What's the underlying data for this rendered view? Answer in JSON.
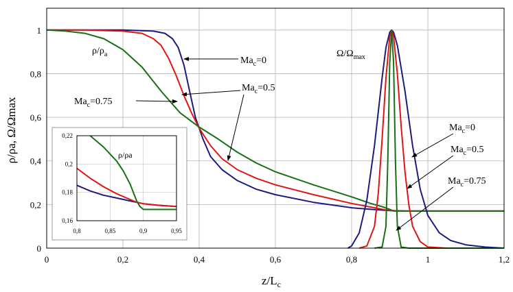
{
  "chart_data": {
    "type": "line",
    "xlabel": "z/L",
    "xlabel_sub": "c",
    "ylabel": "ρ/ρa, Ω/Ωmax",
    "xlim": [
      0,
      1.2
    ],
    "ylim": [
      0,
      1.1
    ],
    "x_ticks": [
      0,
      0.2,
      0.4,
      0.6,
      0.8,
      1.0,
      1.2
    ],
    "x_tick_labels": [
      "0",
      "0,2",
      "0,4",
      "0,6",
      "0,8",
      "1",
      "1,2"
    ],
    "y_ticks": [
      0,
      0.2,
      0.4,
      0.6,
      0.8,
      1.0
    ],
    "y_tick_labels": [
      "0",
      "0,2",
      "0,4",
      "0,6",
      "0,8",
      "1"
    ],
    "grid": true,
    "series": [
      {
        "name": "Mac=0 (ρ/ρa)",
        "color": "#1a1a80",
        "x": [
          0,
          0.1,
          0.2,
          0.28,
          0.31,
          0.33,
          0.345,
          0.36,
          0.375,
          0.39,
          0.41,
          0.43,
          0.46,
          0.5,
          0.55,
          0.6,
          0.7,
          0.8,
          0.85,
          0.9,
          0.95,
          1.0,
          1.2
        ],
        "y": [
          1.0,
          1.0,
          1.0,
          0.995,
          0.985,
          0.96,
          0.92,
          0.84,
          0.72,
          0.6,
          0.5,
          0.42,
          0.36,
          0.31,
          0.27,
          0.245,
          0.21,
          0.185,
          0.178,
          0.172,
          0.17,
          0.17,
          0.17
        ]
      },
      {
        "name": "Mac=0.5 (ρ/ρa)",
        "color": "#e01414",
        "x": [
          0,
          0.1,
          0.2,
          0.25,
          0.28,
          0.3,
          0.32,
          0.34,
          0.36,
          0.38,
          0.4,
          0.43,
          0.46,
          0.5,
          0.55,
          0.6,
          0.7,
          0.8,
          0.86,
          0.89,
          0.92,
          0.95,
          1.0,
          1.2
        ],
        "y": [
          1.0,
          1.0,
          0.995,
          0.985,
          0.96,
          0.93,
          0.87,
          0.79,
          0.7,
          0.62,
          0.55,
          0.47,
          0.41,
          0.36,
          0.32,
          0.29,
          0.245,
          0.205,
          0.185,
          0.175,
          0.17,
          0.17,
          0.17,
          0.17
        ]
      },
      {
        "name": "Mac=0.75 (ρ/ρa)",
        "color": "#157015",
        "x": [
          0,
          0.05,
          0.1,
          0.15,
          0.2,
          0.25,
          0.3,
          0.35,
          0.4,
          0.45,
          0.5,
          0.55,
          0.6,
          0.7,
          0.8,
          0.85,
          0.88,
          0.9,
          0.91,
          0.95,
          1.0,
          1.2
        ],
        "y": [
          1.0,
          0.995,
          0.985,
          0.96,
          0.91,
          0.83,
          0.72,
          0.62,
          0.555,
          0.5,
          0.44,
          0.39,
          0.35,
          0.29,
          0.235,
          0.205,
          0.19,
          0.178,
          0.17,
          0.17,
          0.17,
          0.17
        ]
      },
      {
        "name": "Mac=0 (Ω/Ωmax)",
        "color": "#1a1a80",
        "x": [
          0.79,
          0.8,
          0.82,
          0.84,
          0.86,
          0.88,
          0.89,
          0.9,
          0.905,
          0.91,
          0.92,
          0.94,
          0.96,
          0.98,
          1.0,
          1.03,
          1.06,
          1.1,
          1.15,
          1.2
        ],
        "y": [
          0,
          0.01,
          0.07,
          0.22,
          0.47,
          0.78,
          0.92,
          0.99,
          1.0,
          0.99,
          0.93,
          0.72,
          0.47,
          0.27,
          0.15,
          0.07,
          0.035,
          0.015,
          0.005,
          0.0
        ]
      },
      {
        "name": "Mac=0.5 (Ω/Ωmax)",
        "color": "#e01414",
        "x": [
          0.82,
          0.84,
          0.86,
          0.87,
          0.88,
          0.89,
          0.9,
          0.905,
          0.91,
          0.92,
          0.93,
          0.94,
          0.95,
          0.96,
          0.98,
          1.0,
          1.05,
          1.2
        ],
        "y": [
          0,
          0.01,
          0.1,
          0.25,
          0.5,
          0.78,
          0.97,
          1.0,
          0.97,
          0.8,
          0.56,
          0.35,
          0.2,
          0.1,
          0.03,
          0.005,
          0.0,
          0.0
        ]
      },
      {
        "name": "Mac=0.75 (Ω/Ωmax)",
        "color": "#157015",
        "x": [
          0.86,
          0.88,
          0.89,
          0.895,
          0.9,
          0.905,
          0.91,
          0.915,
          0.92,
          0.93,
          0.95,
          1.2
        ],
        "y": [
          0,
          0.005,
          0.1,
          0.4,
          0.85,
          1.0,
          0.85,
          0.4,
          0.1,
          0.005,
          0.0,
          0.0
        ]
      }
    ],
    "inset": {
      "xlim": [
        0.8,
        0.95
      ],
      "ylim": [
        0.16,
        0.22
      ],
      "x_ticks": [
        0.8,
        0.85,
        0.9,
        0.95
      ],
      "x_tick_labels": [
        "0,8",
        "0,85",
        "0,9",
        "0,95"
      ],
      "y_ticks": [
        0.16,
        0.18,
        0.2,
        0.22
      ],
      "y_tick_labels": [
        "0,16",
        "0,18",
        "0,2",
        "0,22"
      ],
      "label": "ρ/ρa",
      "series": [
        {
          "name": "Mac=0",
          "color": "#1a1a80",
          "x": [
            0.8,
            0.82,
            0.84,
            0.86,
            0.88,
            0.9,
            0.92,
            0.95
          ],
          "y": [
            0.185,
            0.181,
            0.178,
            0.176,
            0.174,
            0.172,
            0.171,
            0.17
          ]
        },
        {
          "name": "Mac=0.5",
          "color": "#e01414",
          "x": [
            0.8,
            0.82,
            0.84,
            0.86,
            0.88,
            0.89,
            0.9,
            0.92,
            0.95
          ],
          "y": [
            0.197,
            0.19,
            0.184,
            0.179,
            0.175,
            0.173,
            0.172,
            0.171,
            0.17
          ]
        },
        {
          "name": "Mac=0.75",
          "color": "#157015",
          "x": [
            0.82,
            0.84,
            0.86,
            0.87,
            0.88,
            0.885,
            0.89,
            0.895,
            0.9,
            0.92,
            0.95
          ],
          "y": [
            0.22,
            0.212,
            0.202,
            0.195,
            0.186,
            0.18,
            0.174,
            0.17,
            0.168,
            0.168,
            0.168
          ]
        }
      ]
    },
    "annotations": {
      "rho_label": {
        "base": "ρ/ρ",
        "sub": "a"
      },
      "omega_label": {
        "base": "Ω/Ω",
        "sub": "max"
      },
      "ma_left": [
        {
          "base": "Ma",
          "sub": "c",
          "value": "=0"
        },
        {
          "base": "Ma",
          "sub": "c",
          "value": "=0.5"
        },
        {
          "base": "Ma",
          "sub": "c",
          "value": "=0.75"
        }
      ],
      "ma_right": [
        {
          "base": "Ma",
          "sub": "c",
          "value": "=0"
        },
        {
          "base": "Ma",
          "sub": "c",
          "value": "=0.5"
        },
        {
          "base": "Ma",
          "sub": "c",
          "value": "=0.75"
        }
      ]
    }
  }
}
